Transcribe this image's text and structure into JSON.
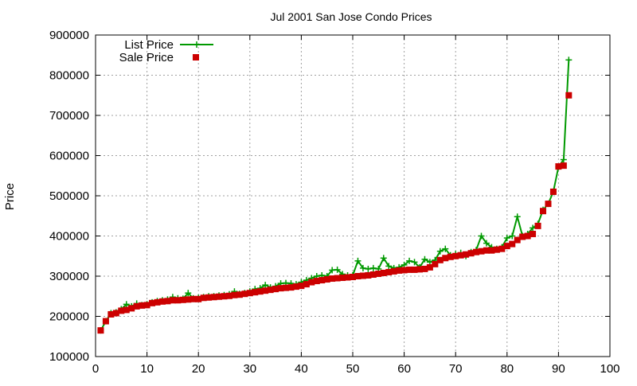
{
  "colors": {
    "list_line": "#009900",
    "sale_marker": "#cc0000",
    "grid": "#a0a0a0",
    "axis": "#000000",
    "background": "#ffffff"
  },
  "chart_data": {
    "type": "line",
    "title": "Jul 2001 San Jose Condo Prices",
    "xlabel": "",
    "ylabel": "Price",
    "xlim": [
      0,
      100
    ],
    "ylim": [
      100000,
      900000
    ],
    "x_ticks": [
      0,
      10,
      20,
      30,
      40,
      50,
      60,
      70,
      80,
      90,
      100
    ],
    "x_tick_labels": [
      "0",
      "10",
      "20",
      "30",
      "40",
      "50",
      "60",
      "70",
      "80",
      "90",
      "100"
    ],
    "y_ticks": [
      100000,
      200000,
      300000,
      400000,
      500000,
      600000,
      700000,
      800000,
      900000
    ],
    "y_tick_labels": [
      "100000",
      "200000",
      "300000",
      "400000",
      "500000",
      "600000",
      "700000",
      "800000",
      "900000"
    ],
    "grid": true,
    "legend_position": "top-left",
    "series": [
      {
        "name": "List Price",
        "style": "lines+points",
        "marker": "plus",
        "x": [
          1,
          2,
          3,
          4,
          5,
          6,
          7,
          8,
          9,
          10,
          11,
          12,
          13,
          14,
          15,
          16,
          17,
          18,
          19,
          20,
          21,
          22,
          23,
          24,
          25,
          26,
          27,
          28,
          29,
          30,
          31,
          32,
          33,
          34,
          35,
          36,
          37,
          38,
          39,
          40,
          41,
          42,
          43,
          44,
          45,
          46,
          47,
          48,
          49,
          50,
          51,
          52,
          53,
          54,
          55,
          56,
          57,
          58,
          59,
          60,
          61,
          62,
          63,
          64,
          65,
          66,
          67,
          68,
          69,
          70,
          71,
          72,
          73,
          74,
          75,
          76,
          77,
          78,
          79,
          80,
          81,
          82,
          83,
          84,
          85,
          86,
          87,
          88,
          89,
          90,
          91,
          92
        ],
        "y": [
          165000,
          188000,
          208000,
          210000,
          218000,
          230000,
          225000,
          232000,
          228000,
          230000,
          235000,
          238000,
          240000,
          242000,
          248000,
          245000,
          244000,
          258000,
          245000,
          246000,
          248000,
          250000,
          250000,
          252000,
          253000,
          255000,
          262000,
          256000,
          258000,
          262000,
          268000,
          270000,
          278000,
          272000,
          275000,
          282000,
          283000,
          282000,
          280000,
          285000,
          290000,
          295000,
          300000,
          302000,
          300000,
          315000,
          316000,
          305000,
          302000,
          302000,
          338000,
          320000,
          318000,
          320000,
          318000,
          345000,
          325000,
          320000,
          322000,
          328000,
          338000,
          335000,
          322000,
          342000,
          335000,
          340000,
          362000,
          368000,
          352000,
          355000,
          358000,
          350000,
          360000,
          365000,
          400000,
          382000,
          372000,
          368000,
          372000,
          395000,
          400000,
          448000,
          400000,
          405000,
          420000,
          430000,
          465000,
          480000,
          510000,
          572000,
          590000,
          838000
        ]
      },
      {
        "name": "Sale Price",
        "style": "points",
        "marker": "square",
        "x": [
          1,
          2,
          3,
          4,
          5,
          6,
          7,
          8,
          9,
          10,
          11,
          12,
          13,
          14,
          15,
          16,
          17,
          18,
          19,
          20,
          21,
          22,
          23,
          24,
          25,
          26,
          27,
          28,
          29,
          30,
          31,
          32,
          33,
          34,
          35,
          36,
          37,
          38,
          39,
          40,
          41,
          42,
          43,
          44,
          45,
          46,
          47,
          48,
          49,
          50,
          51,
          52,
          53,
          54,
          55,
          56,
          57,
          58,
          59,
          60,
          61,
          62,
          63,
          64,
          65,
          66,
          67,
          68,
          69,
          70,
          71,
          72,
          73,
          74,
          75,
          76,
          77,
          78,
          79,
          80,
          81,
          82,
          83,
          84,
          85,
          86,
          87,
          88,
          89,
          90,
          91,
          92
        ],
        "y": [
          165000,
          188000,
          205000,
          208000,
          214000,
          216000,
          220000,
          225000,
          227000,
          228000,
          233000,
          235000,
          237000,
          238000,
          240000,
          240000,
          241000,
          242000,
          243000,
          243000,
          246000,
          247000,
          248000,
          249000,
          250000,
          251000,
          253000,
          254000,
          256000,
          258000,
          260000,
          262000,
          264000,
          266000,
          268000,
          270000,
          271000,
          272000,
          274000,
          276000,
          280000,
          285000,
          288000,
          290000,
          292000,
          294000,
          295000,
          296000,
          297000,
          298000,
          300000,
          301000,
          302000,
          304000,
          306000,
          308000,
          310000,
          312000,
          314000,
          315000,
          316000,
          316000,
          317000,
          318000,
          322000,
          330000,
          340000,
          345000,
          348000,
          350000,
          352000,
          354000,
          357000,
          360000,
          362000,
          364000,
          364000,
          366000,
          368000,
          375000,
          380000,
          390000,
          398000,
          400000,
          405000,
          425000,
          462000,
          480000,
          510000,
          573000,
          575000,
          750000
        ]
      }
    ]
  }
}
